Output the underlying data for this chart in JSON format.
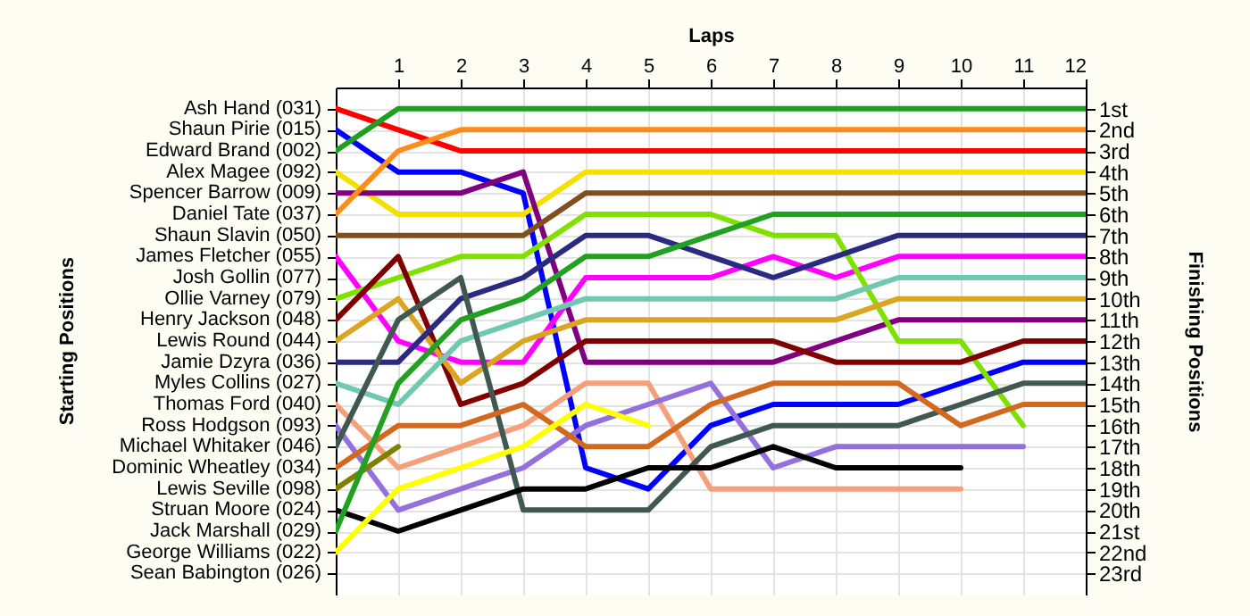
{
  "chart_data": {
    "type": "line",
    "xlabel": "Laps",
    "ylabel": "Finishing Positions",
    "grid": true,
    "x": [
      0,
      1,
      2,
      3,
      4,
      5,
      6,
      7,
      8,
      9,
      10,
      11,
      12
    ],
    "xlim": [
      0,
      12
    ],
    "xticks": [
      1,
      2,
      3,
      4,
      5,
      6,
      7,
      8,
      9,
      10,
      11,
      12
    ],
    "ylim": [
      24,
      0
    ],
    "yticks": [
      {
        "value": 1,
        "label": "1st"
      },
      {
        "value": 2,
        "label": "2nd"
      },
      {
        "value": 3,
        "label": "3rd"
      },
      {
        "value": 4,
        "label": "4th"
      },
      {
        "value": 5,
        "label": "5th"
      },
      {
        "value": 6,
        "label": "6th"
      },
      {
        "value": 7,
        "label": "7th"
      },
      {
        "value": 8,
        "label": "8th"
      },
      {
        "value": 9,
        "label": "9th"
      },
      {
        "value": 10,
        "label": "10th"
      },
      {
        "value": 11,
        "label": "11th"
      },
      {
        "value": 12,
        "label": "12th"
      },
      {
        "value": 13,
        "label": "13th"
      },
      {
        "value": 14,
        "label": "14th"
      },
      {
        "value": 15,
        "label": "15th"
      },
      {
        "value": 16,
        "label": "16th"
      },
      {
        "value": 17,
        "label": "17th"
      },
      {
        "value": 18,
        "label": "18th"
      },
      {
        "value": 19,
        "label": "19th"
      },
      {
        "value": 20,
        "label": "20th"
      },
      {
        "value": 21,
        "label": "21st"
      },
      {
        "value": 22,
        "label": "22nd"
      },
      {
        "value": 23,
        "label": "23rd"
      }
    ],
    "annotations": [
      "Starting Positions",
      "Ash Hand (031)",
      "Shaun Pirie (015)",
      "Edward Brand (002)",
      "Alex Magee (092)",
      "Spencer Barrow (009)",
      "Daniel Tate (037)",
      "Shaun Slavin (050)",
      "James Fletcher (055)",
      "Josh Gollin (077)",
      "Ollie Varney (079)",
      "Henry Jackson (048)",
      "Lewis Round (044)",
      "Jamie Dzyra (036)",
      "Myles Collins (027)",
      "Thomas Ford (040)",
      "Ross Hodgson (093)",
      "Michael Whitaker (046)",
      "Dominic Wheatley (034)",
      "Lewis Seville (098)",
      "Struan Moore (024)",
      "Jack Marshall (029)",
      "George Williams (022)",
      "Sean Babington (026)"
    ],
    "series": [
      {
        "color": "#ff0000",
        "values": [
          1,
          2,
          3,
          3,
          3,
          3,
          3,
          3,
          3,
          3,
          3,
          3,
          3
        ]
      },
      {
        "color": "#0000ff",
        "values": [
          2,
          4,
          4,
          5,
          18,
          19,
          16,
          15,
          15,
          15,
          14,
          13,
          13
        ]
      },
      {
        "color": "#1f9f1f",
        "values": [
          3,
          1,
          1,
          1,
          1,
          1,
          1,
          1,
          1,
          1,
          1,
          1,
          1
        ]
      },
      {
        "color": "#f5e000",
        "values": [
          4,
          6,
          6,
          6,
          4,
          4,
          4,
          4,
          4,
          4,
          4,
          4,
          4
        ]
      },
      {
        "color": "#800080",
        "values": [
          5,
          5,
          5,
          4,
          13,
          13,
          13,
          13,
          12,
          11,
          11,
          11,
          11
        ]
      },
      {
        "color": "#ff8c1a",
        "values": [
          6,
          3,
          2,
          2,
          2,
          2,
          2,
          2,
          2,
          2,
          2,
          2,
          2
        ]
      },
      {
        "color": "#7f4f1f",
        "values": [
          7,
          7,
          7,
          7,
          5,
          5,
          5,
          5,
          5,
          5,
          5,
          5,
          5
        ]
      },
      {
        "color": "#ff00ff",
        "values": [
          8,
          12,
          13,
          13,
          9,
          9,
          9,
          8,
          9,
          8,
          8,
          8,
          8
        ]
      },
      {
        "color": "#80e000",
        "values": [
          10,
          9,
          8,
          8,
          6,
          6,
          6,
          7,
          7,
          12,
          12,
          16,
          null
        ]
      },
      {
        "color": "#800000",
        "values": [
          11,
          8,
          15,
          14,
          12,
          12,
          12,
          12,
          13,
          13,
          13,
          12,
          12
        ]
      },
      {
        "color": "#daa520",
        "values": [
          12,
          10,
          14,
          12,
          11,
          11,
          11,
          11,
          11,
          10,
          10,
          10,
          10
        ]
      },
      {
        "color": "#2a2a80",
        "values": [
          13,
          13,
          10,
          9,
          7,
          7,
          8,
          9,
          8,
          7,
          7,
          7,
          7
        ]
      },
      {
        "color": "#70c8b0",
        "values": [
          14,
          15,
          12,
          11,
          10,
          10,
          10,
          10,
          10,
          9,
          9,
          9,
          9
        ]
      },
      {
        "color": "#f5a07a",
        "values": [
          15,
          18,
          17,
          16,
          14,
          14,
          19,
          19,
          19,
          19,
          19,
          null,
          null
        ]
      },
      {
        "color": "#9370db",
        "values": [
          16,
          20,
          19,
          18,
          16,
          15,
          14,
          18,
          17,
          17,
          17,
          17,
          null
        ]
      },
      {
        "color": "#405850",
        "values": [
          17,
          11,
          9,
          20,
          20,
          20,
          17,
          16,
          16,
          16,
          15,
          14,
          14
        ]
      },
      {
        "color": "#d2691e",
        "values": [
          18,
          16,
          16,
          15,
          17,
          17,
          15,
          14,
          14,
          14,
          16,
          15,
          15
        ]
      },
      {
        "color": "#808000",
        "values": [
          19,
          17,
          null,
          null,
          null,
          null,
          null,
          null,
          null,
          null,
          null,
          null,
          null
        ]
      },
      {
        "color": "#000000",
        "values": [
          20,
          21,
          20,
          19,
          19,
          18,
          18,
          17,
          18,
          18,
          18,
          null,
          null
        ]
      },
      {
        "color": "#22a022",
        "values": [
          21,
          14,
          11,
          10,
          8,
          8,
          7,
          6,
          6,
          6,
          6,
          6,
          6
        ]
      },
      {
        "color": "#ffff00",
        "values": [
          22,
          19,
          18,
          17,
          15,
          16,
          null,
          null,
          null,
          null,
          null,
          null,
          null
        ]
      }
    ]
  }
}
